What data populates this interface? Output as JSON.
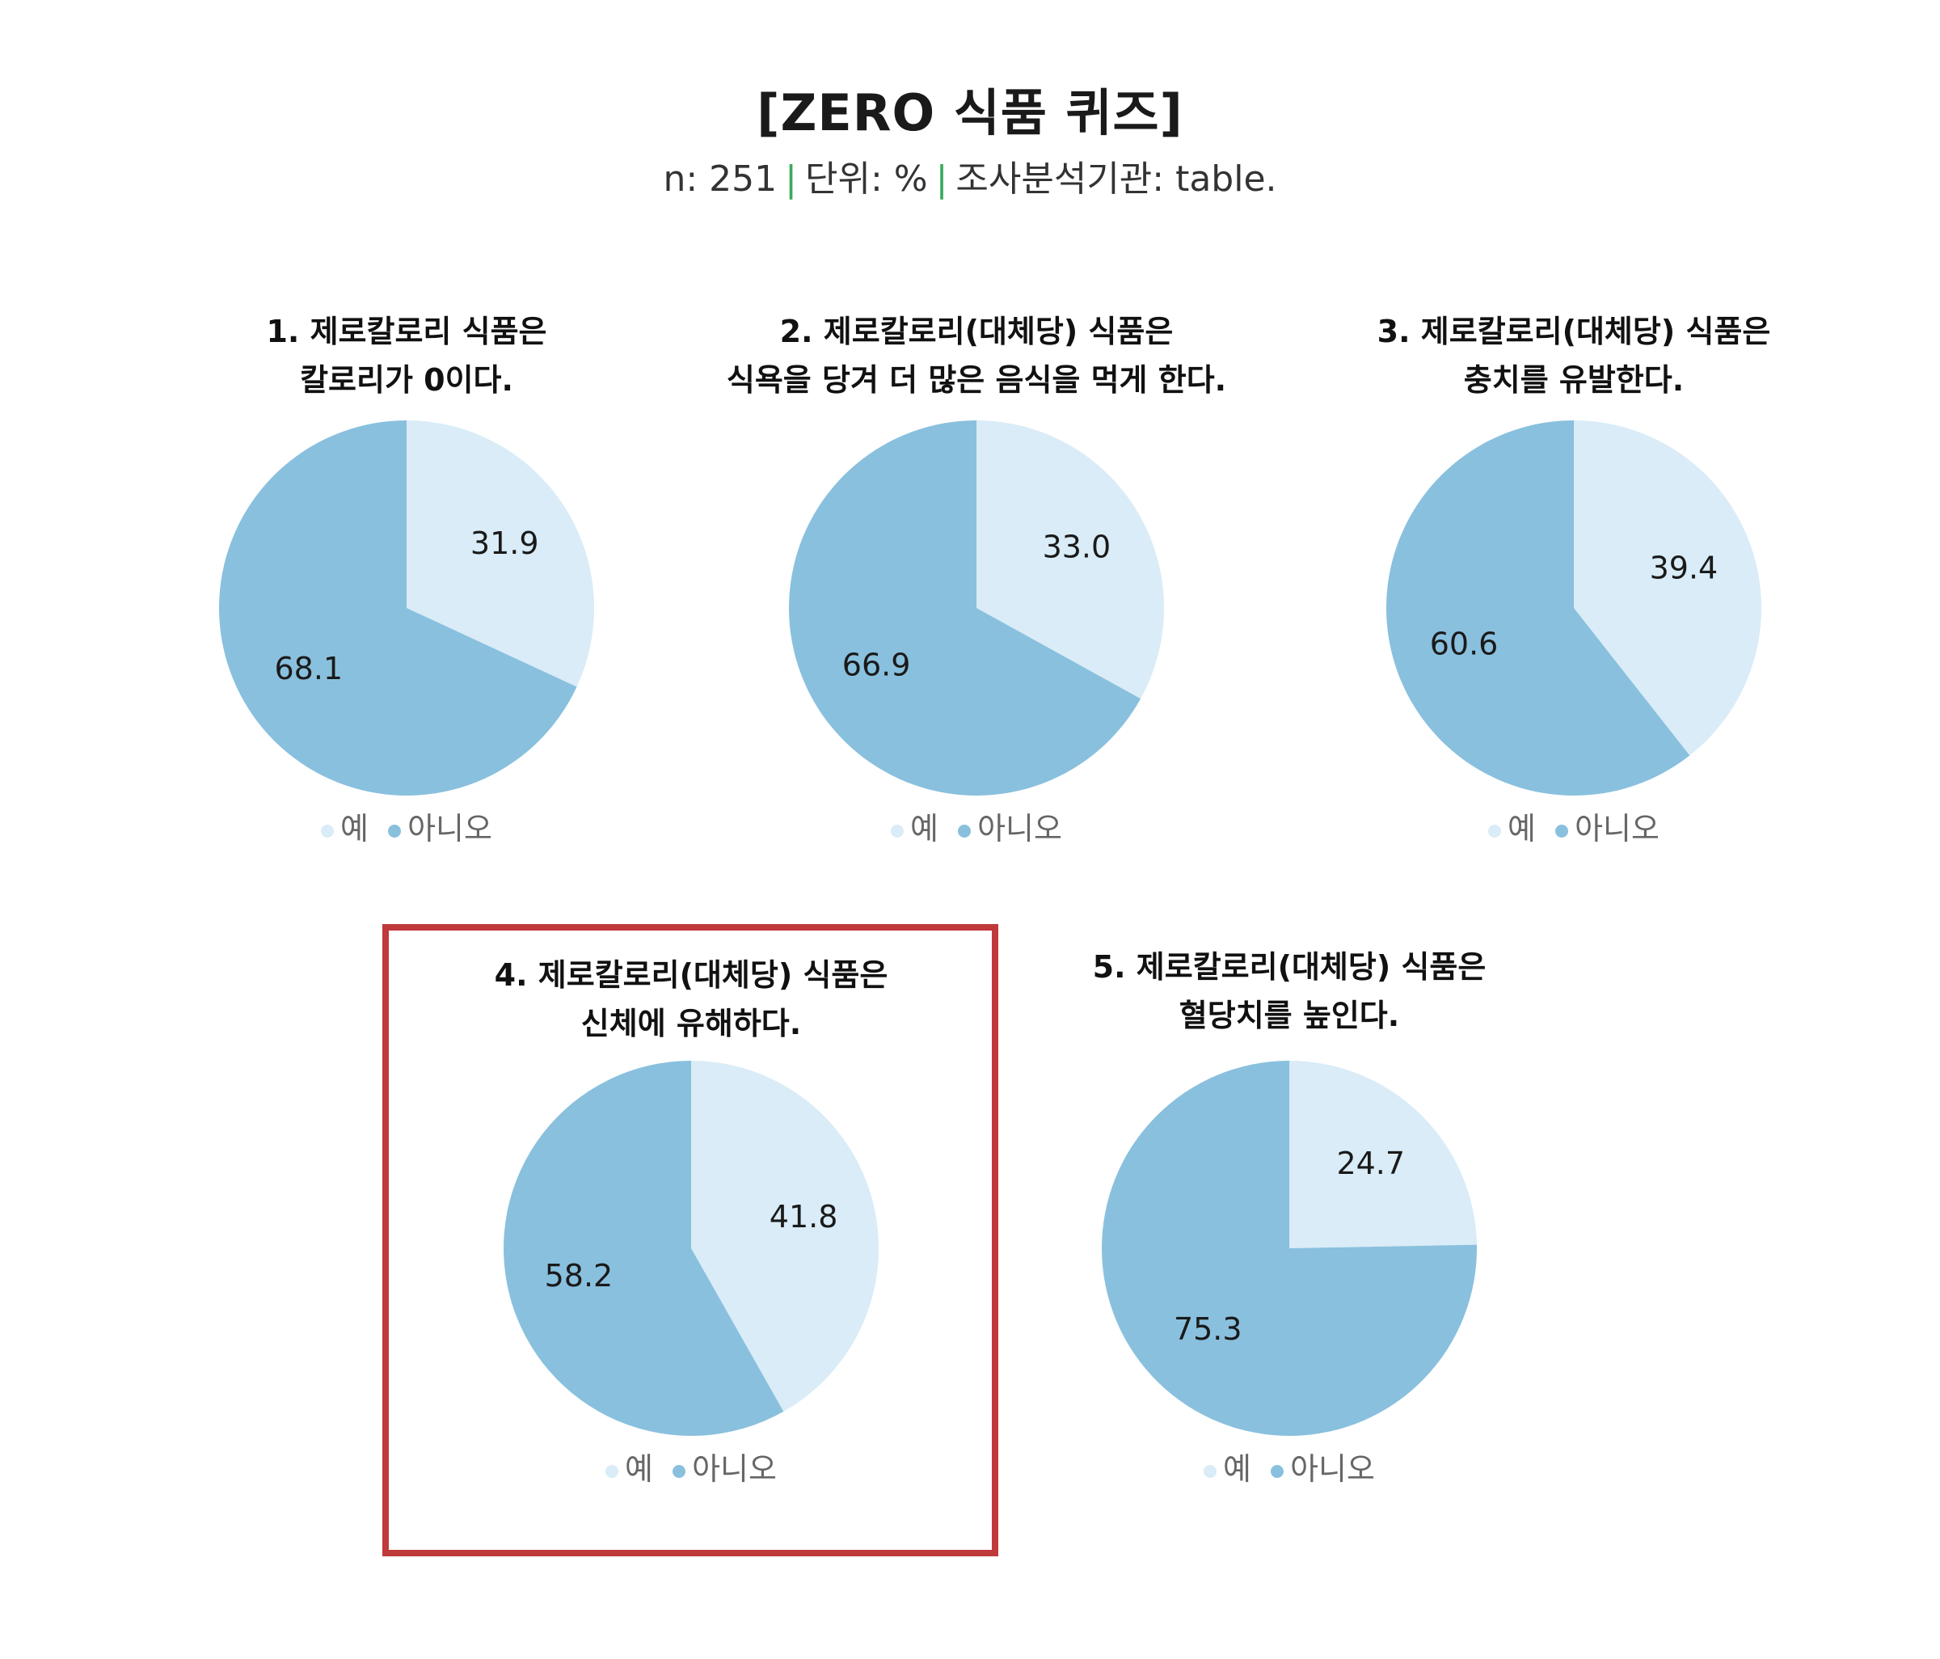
{
  "header": {
    "title": "[ZERO 식품 퀴즈]",
    "n": "n: 251",
    "unit": "단위: %",
    "source": "조사분석기관: table."
  },
  "colors": {
    "yes": "#d9ecf7",
    "no": "#89c0de",
    "highlight": "#c0393b",
    "separator": "#3aaa5a"
  },
  "legend": {
    "yes": "예",
    "no": "아니오"
  },
  "chart_data": [
    {
      "type": "pie",
      "title_lines": [
        "1. 제로칼로리 식품은",
        "칼로리가 0이다."
      ],
      "categories": [
        "예",
        "아니오"
      ],
      "values": [
        31.9,
        68.1
      ]
    },
    {
      "type": "pie",
      "title_lines": [
        "2. 제로칼로리(대체당) 식품은",
        "식욕을 당겨 더 많은 음식을 먹게 한다."
      ],
      "categories": [
        "예",
        "아니오"
      ],
      "values": [
        33.0,
        66.9
      ]
    },
    {
      "type": "pie",
      "title_lines": [
        "3. 제로칼로리(대체당) 식품은",
        "충치를 유발한다."
      ],
      "categories": [
        "예",
        "아니오"
      ],
      "values": [
        39.4,
        60.6
      ]
    },
    {
      "type": "pie",
      "title_lines": [
        "4. 제로칼로리(대체당) 식품은",
        "신체에 유해하다."
      ],
      "categories": [
        "예",
        "아니오"
      ],
      "values": [
        41.8,
        58.2
      ],
      "highlighted": true
    },
    {
      "type": "pie",
      "title_lines": [
        "5. 제로칼로리(대체당) 식품은",
        "혈당치를 높인다."
      ],
      "categories": [
        "예",
        "아니오"
      ],
      "values": [
        24.7,
        75.3
      ]
    }
  ]
}
